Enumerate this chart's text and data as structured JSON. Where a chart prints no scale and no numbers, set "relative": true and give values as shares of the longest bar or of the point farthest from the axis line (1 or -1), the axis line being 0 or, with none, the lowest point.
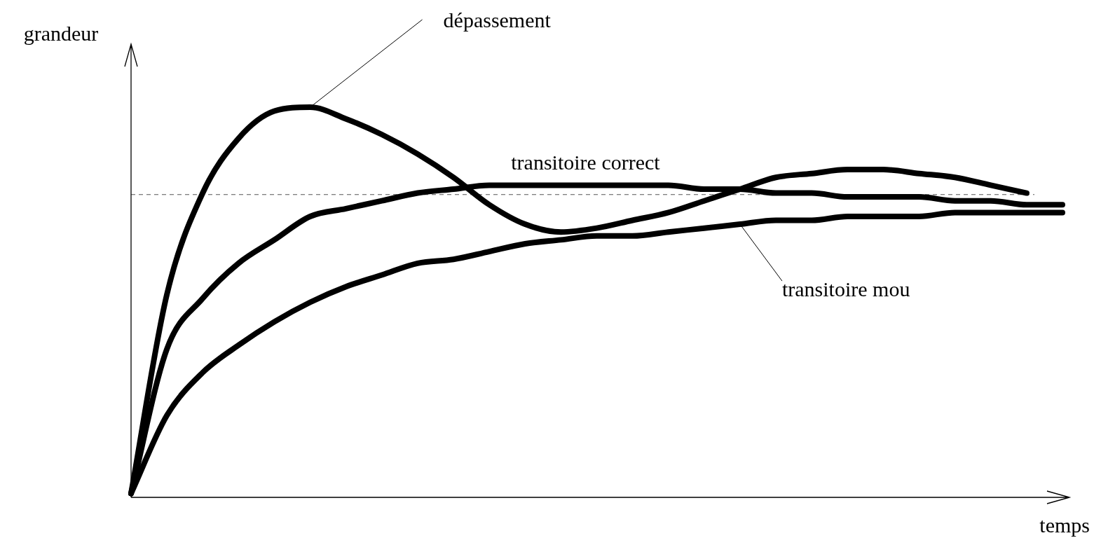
{
  "chart_data": {
    "type": "line",
    "relative": true,
    "xlabel": "temps",
    "ylabel": "grandeur",
    "legend": false,
    "marker": "none",
    "line_style": "solid",
    "categories": [
      null,
      null,
      null,
      null,
      null,
      null,
      null,
      null,
      null,
      null,
      null,
      null,
      null,
      null,
      null,
      null,
      null,
      null,
      null,
      null,
      null,
      null,
      null,
      null,
      null,
      null,
      null
    ],
    "series": [
      {
        "name": "dépassement",
        "color": "#000000",
        "values": [
          0.01,
          0.52,
          0.78,
          0.92,
          0.99,
          1.0,
          0.97,
          0.93,
          0.88,
          0.82,
          0.75,
          0.7,
          0.68,
          0.69,
          0.71,
          0.73,
          0.76,
          0.79,
          0.82,
          0.83,
          0.84,
          0.84,
          0.83,
          0.82,
          0.8,
          0.78,
          null
        ]
      },
      {
        "name": "transitoire correct",
        "color": "#000000",
        "values": [
          0.01,
          0.38,
          0.51,
          0.6,
          0.66,
          0.72,
          0.74,
          0.76,
          0.78,
          0.79,
          0.8,
          0.8,
          0.8,
          0.8,
          0.8,
          0.8,
          0.79,
          0.79,
          0.78,
          0.78,
          0.77,
          0.77,
          0.77,
          0.76,
          0.76,
          0.75,
          0.75
        ]
      },
      {
        "name": "transitoire mou",
        "color": "#000000",
        "values": [
          0.01,
          0.21,
          0.32,
          0.39,
          0.45,
          0.5,
          0.54,
          0.57,
          0.6,
          0.61,
          0.63,
          0.65,
          0.66,
          0.67,
          0.67,
          0.68,
          0.69,
          0.7,
          0.71,
          0.71,
          0.72,
          0.72,
          0.72,
          0.73,
          0.73,
          0.73,
          0.73
        ]
      }
    ],
    "ref_lines": [
      {
        "axis": "y",
        "value": 0.776,
        "color": "#555555",
        "line_style": "dashed"
      }
    ]
  }
}
